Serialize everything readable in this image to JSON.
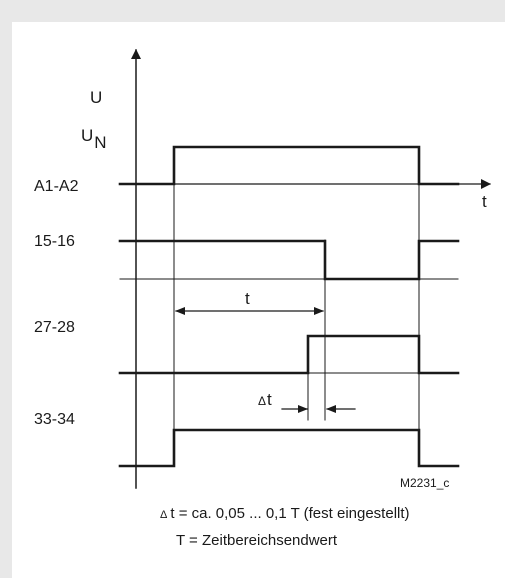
{
  "axis": {
    "u": "U",
    "un_base": "U",
    "un_sub": "N",
    "t": "t"
  },
  "signals": [
    "A1-A2",
    "15-16",
    "27-28",
    "33-34"
  ],
  "time_t": "t",
  "delta_t": {
    "sym": "Δ",
    "t": "t"
  },
  "code": "M2231_c",
  "notes": {
    "line1_sym": "Δ",
    "line1": "t = ca. 0,05 ... 0,1 T (fest eingestellt)",
    "line2": "T = Zeitbereichsendwert"
  }
}
